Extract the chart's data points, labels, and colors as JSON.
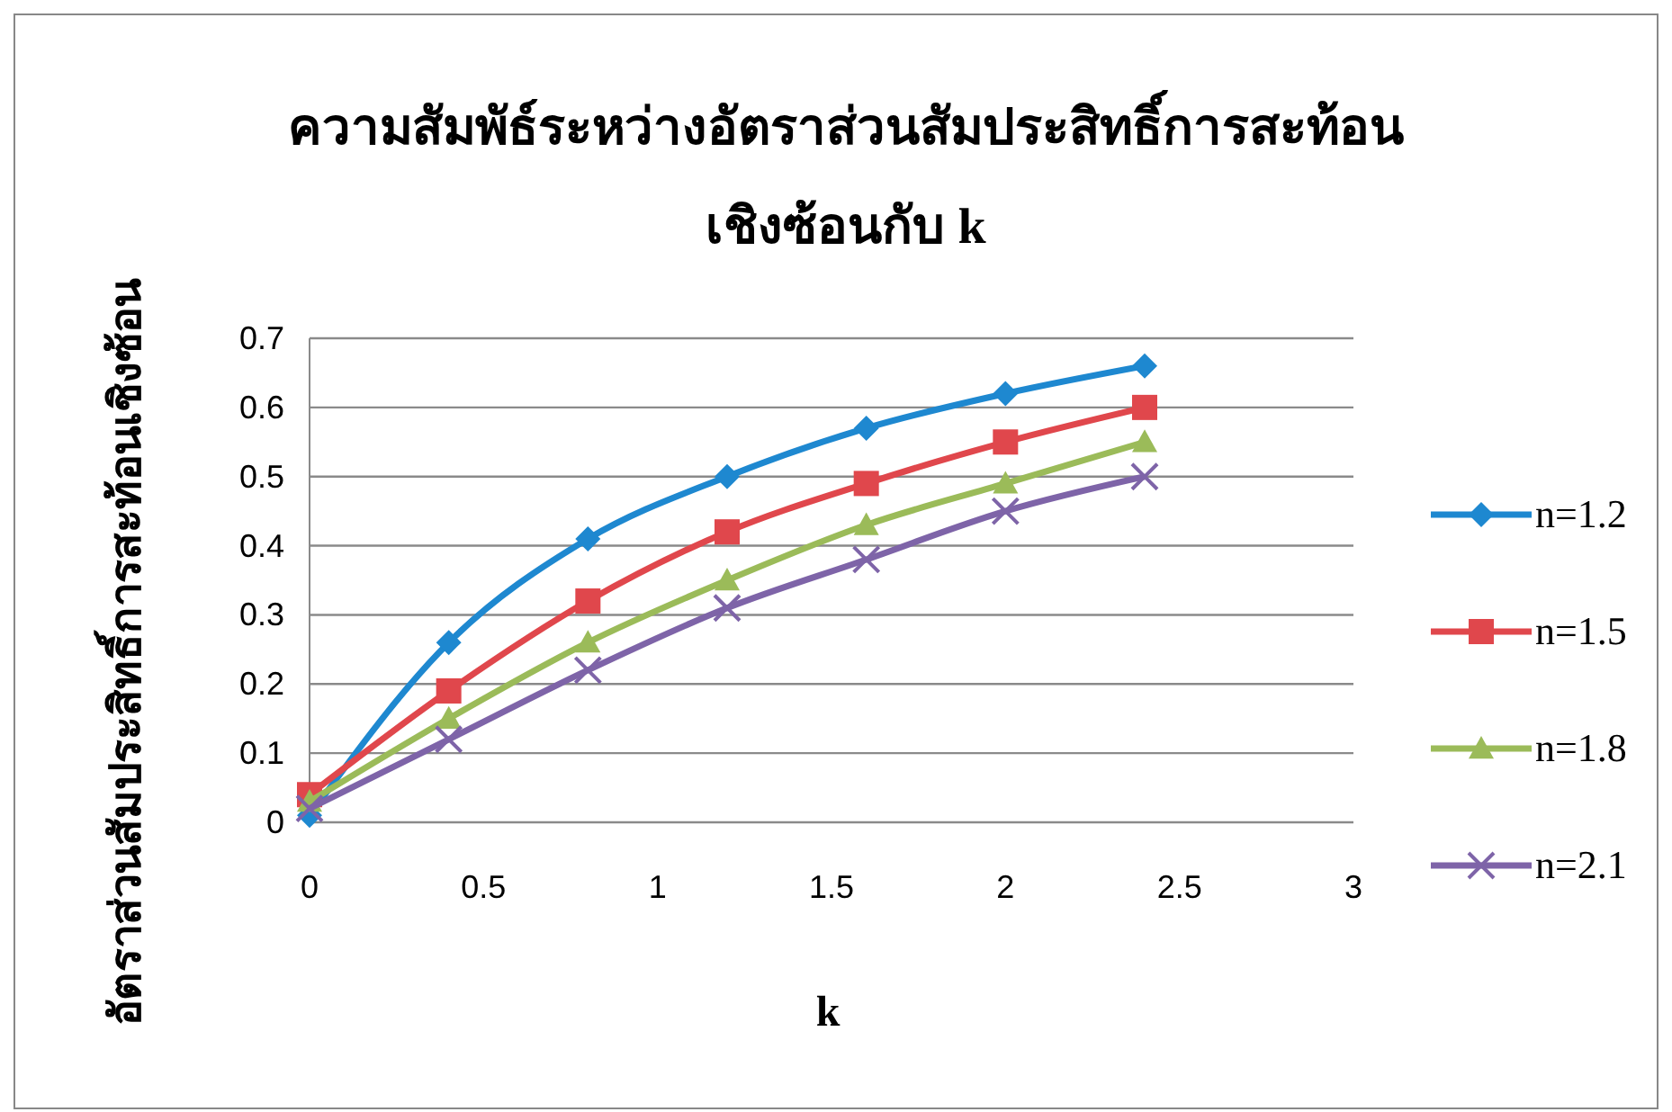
{
  "chart_data": {
    "type": "line",
    "title": "ความสัมพัธ์ระหว่างอัตราส่วนสัมประสิทธิ์การสะท้อน\nเชิงซ้อนกับ k",
    "xlabel": "k",
    "ylabel": "อัตราส่วนสัมประสิทธิ์การสะท้อนเชิงซ้อน",
    "x": [
      0,
      0.4,
      0.8,
      1.2,
      1.6,
      2.0,
      2.4
    ],
    "series": [
      {
        "name": "n=1.2",
        "color": "#1e88d0",
        "marker": "diamond",
        "values": [
          0.01,
          0.26,
          0.41,
          0.5,
          0.57,
          0.62,
          0.66
        ]
      },
      {
        "name": "n=1.5",
        "color": "#e0474c",
        "marker": "square",
        "values": [
          0.04,
          0.19,
          0.32,
          0.42,
          0.49,
          0.55,
          0.6
        ]
      },
      {
        "name": "n=1.8",
        "color": "#9bbb59",
        "marker": "triangle",
        "values": [
          0.03,
          0.15,
          0.26,
          0.35,
          0.43,
          0.49,
          0.55
        ]
      },
      {
        "name": "n=2.1",
        "color": "#7e64a8",
        "marker": "cross",
        "values": [
          0.02,
          0.12,
          0.22,
          0.31,
          0.38,
          0.45,
          0.5
        ]
      }
    ],
    "xlim": [
      0,
      3
    ],
    "xticks": [
      0,
      0.5,
      1,
      1.5,
      2,
      2.5,
      3
    ],
    "ylim": [
      0,
      0.7
    ],
    "yticks": [
      0,
      0.1,
      0.2,
      0.3,
      0.4,
      0.5,
      0.6,
      0.7
    ],
    "grid": "y",
    "legend": "right"
  }
}
